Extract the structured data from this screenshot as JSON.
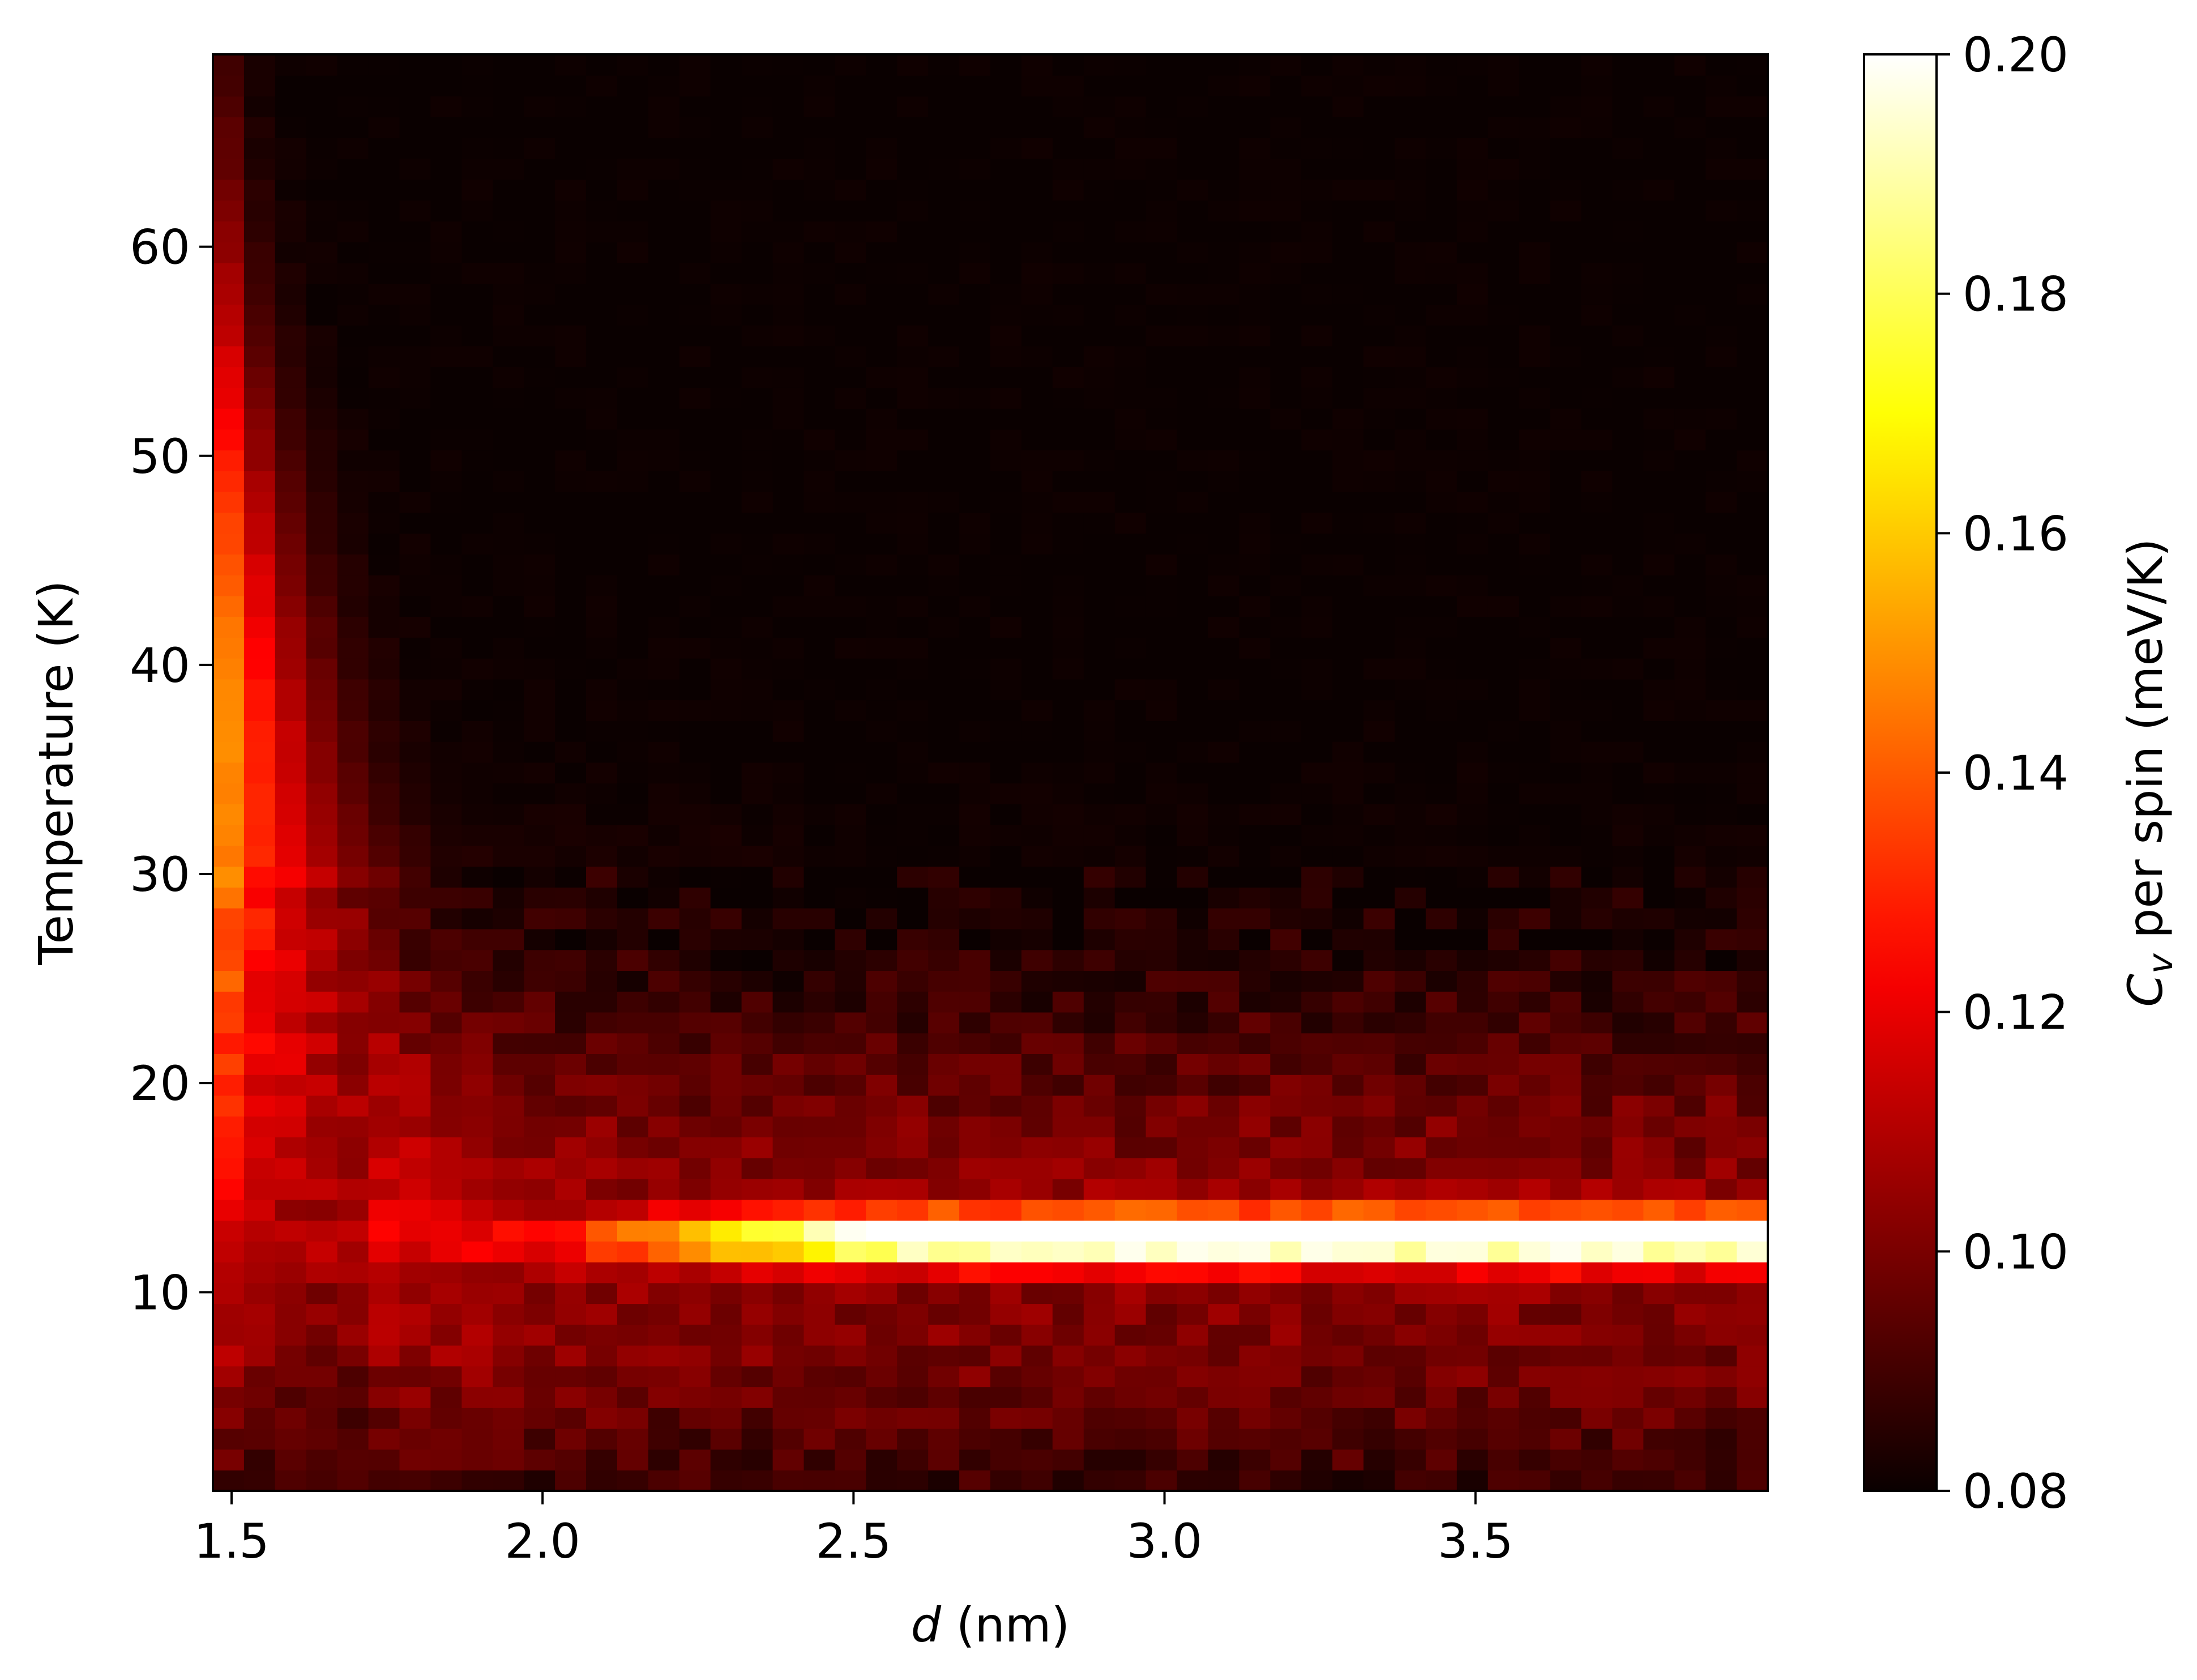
{
  "chart_data": {
    "type": "heatmap",
    "title": "",
    "xlabel": "d (nm)",
    "xlabel_italic_part": "d",
    "xlabel_rest": " (nm)",
    "ylabel": "Temperature (K)",
    "colorbar_label": "C_v per spin (meV/K)",
    "colorbar_label_symbol": "C",
    "colorbar_label_subscript": "v",
    "colorbar_label_rest": " per spin (meV/K)",
    "colormap": "hot",
    "xlim": [
      1.47,
      3.97
    ],
    "ylim": [
      0.5,
      69.2
    ],
    "clim": [
      0.08,
      0.2
    ],
    "x_ticks": [
      1.5,
      2.0,
      2.5,
      3.0,
      3.5
    ],
    "x_tick_labels": [
      "1.5",
      "2.0",
      "2.5",
      "3.0",
      "3.5"
    ],
    "y_ticks": [
      10,
      20,
      30,
      40,
      50,
      60
    ],
    "y_tick_labels": [
      "10",
      "20",
      "30",
      "40",
      "50",
      "60"
    ],
    "colorbar_ticks": [
      0.08,
      0.1,
      0.12,
      0.14,
      0.16,
      0.18,
      0.2
    ],
    "colorbar_tick_labels": [
      "0.08",
      "0.10",
      "0.12",
      "0.14",
      "0.16",
      "0.18",
      "0.20"
    ],
    "grid": "off",
    "legend": "none",
    "columns": 50,
    "rows": 69,
    "features": [
      {
        "region": "low-d peak ridge",
        "d_range": [
          1.47,
          1.75
        ],
        "T_range": [
          20,
          60
        ],
        "peak_value": 0.15,
        "peak_at": {
          "d": 1.5,
          "T": 36
        }
      },
      {
        "region": "transition ridge",
        "d_range": [
          2.1,
          3.97
        ],
        "T_range": [
          11,
          14
        ],
        "peak_value": 0.2,
        "peak_at": {
          "d": 3.3,
          "T": 12.8
        }
      },
      {
        "region": "background above ridge",
        "d_range": [
          2.0,
          3.97
        ],
        "T_range": [
          30,
          69
        ],
        "value": 0.08
      }
    ]
  }
}
